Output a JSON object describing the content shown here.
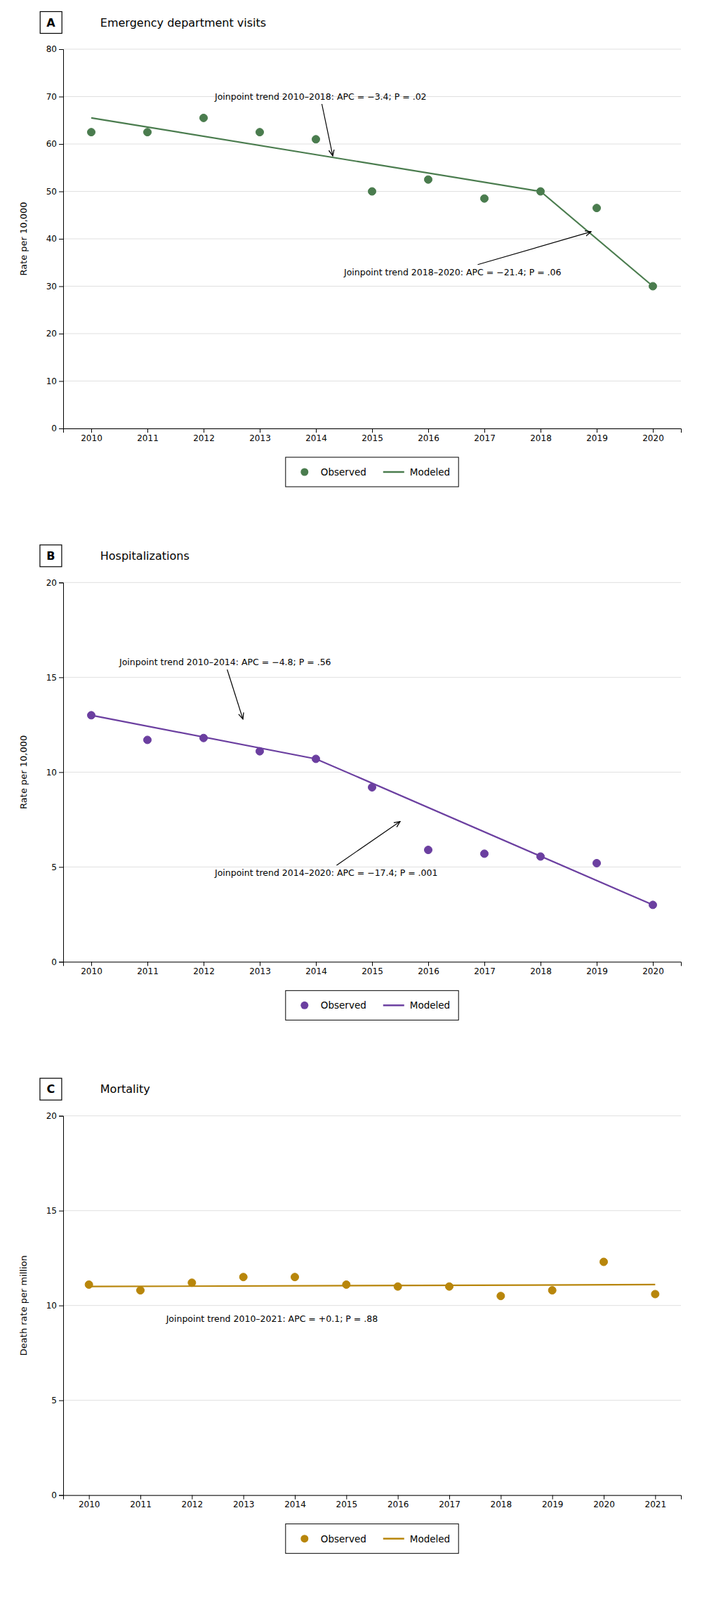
{
  "chart_data": [
    {
      "type": "line",
      "title": "Emergency department visits",
      "panel_label": "A",
      "y_label": "Rate per 10,000",
      "xlim": [
        2009.5,
        2020.5
      ],
      "xticks": [
        2010,
        2011,
        2012,
        2013,
        2014,
        2015,
        2016,
        2017,
        2018,
        2019,
        2020
      ],
      "ylim": [
        0,
        80
      ],
      "yticks": [
        0,
        10,
        20,
        30,
        40,
        50,
        60,
        70,
        80
      ],
      "grid": true,
      "legend": "bottom",
      "series": [
        {
          "name": "Observed",
          "type": "scatter",
          "color": "#4a7c4e",
          "x": [
            2010,
            2011,
            2012,
            2013,
            2014,
            2015,
            2016,
            2017,
            2018,
            2019,
            2020
          ],
          "values": [
            62.5,
            62.5,
            65.5,
            62.5,
            61.0,
            50.0,
            52.5,
            48.5,
            50.0,
            46.5,
            30.0
          ]
        },
        {
          "name": "Modeled",
          "type": "line",
          "color": "#4a7c4e",
          "x": [
            2010,
            2018,
            2018,
            2020
          ],
          "values": [
            65.5,
            50.0,
            50.0,
            30.0
          ]
        }
      ],
      "annotations": [
        {
          "text": "Joinpoint trend 2010–2018: APC = −3.4; P = .02",
          "xy": [
            2014.3,
            57.5
          ],
          "xytext": [
            2012.2,
            70.0
          ]
        },
        {
          "text": "Joinpoint trend 2018–2020: APC = −21.4; P = .06",
          "xy": [
            2018.9,
            41.5
          ],
          "xytext": [
            2014.5,
            33.0
          ]
        }
      ]
    },
    {
      "type": "line",
      "title": "Hospitalizations",
      "panel_label": "B",
      "y_label": "Rate per 10,000",
      "xlim": [
        2009.5,
        2020.5
      ],
      "xticks": [
        2010,
        2011,
        2012,
        2013,
        2014,
        2015,
        2016,
        2017,
        2018,
        2019,
        2020
      ],
      "ylim": [
        0,
        20
      ],
      "yticks": [
        0,
        5,
        10,
        15,
        20
      ],
      "grid": true,
      "legend": "bottom",
      "series": [
        {
          "name": "Observed",
          "type": "scatter",
          "color": "#6b3fa0",
          "x": [
            2010,
            2011,
            2012,
            2013,
            2014,
            2015,
            2016,
            2017,
            2018,
            2019,
            2020
          ],
          "values": [
            13.0,
            11.7,
            11.8,
            11.1,
            10.7,
            9.2,
            5.9,
            5.7,
            5.55,
            5.2,
            3.0
          ]
        },
        {
          "name": "Modeled",
          "type": "line",
          "color": "#6b3fa0",
          "x": [
            2010,
            2014,
            2014,
            2020
          ],
          "values": [
            13.0,
            10.7,
            10.7,
            3.0
          ]
        }
      ],
      "annotations": [
        {
          "text": "Joinpoint trend 2010–2014: APC = −4.8; P = .56",
          "xy": [
            2012.7,
            12.8
          ],
          "xytext": [
            2010.5,
            15.8
          ]
        },
        {
          "text": "Joinpoint trend 2014–2020: APC = −17.4; P = .001",
          "xy": [
            2015.5,
            7.4
          ],
          "xytext": [
            2012.2,
            4.7
          ]
        }
      ]
    },
    {
      "type": "line",
      "title": "Mortality",
      "panel_label": "C",
      "y_label": "Death rate per million",
      "xlim": [
        2009.5,
        2021.5
      ],
      "xticks": [
        2010,
        2011,
        2012,
        2013,
        2014,
        2015,
        2016,
        2017,
        2018,
        2019,
        2020,
        2021
      ],
      "ylim": [
        0,
        20
      ],
      "yticks": [
        0,
        5,
        10,
        15,
        20
      ],
      "grid": true,
      "legend": "bottom",
      "series": [
        {
          "name": "Observed",
          "type": "scatter",
          "color": "#b8860b",
          "x": [
            2010,
            2011,
            2012,
            2013,
            2014,
            2015,
            2016,
            2017,
            2018,
            2019,
            2020,
            2021
          ],
          "values": [
            11.1,
            10.8,
            11.2,
            11.5,
            11.5,
            11.1,
            11.0,
            11.0,
            10.5,
            10.8,
            12.3,
            10.6
          ]
        },
        {
          "name": "Modeled",
          "type": "line",
          "color": "#b8860b",
          "x": [
            2010,
            2021
          ],
          "values": [
            11.0,
            11.1
          ]
        }
      ],
      "annotations": [
        {
          "text": "Joinpoint trend 2010–2021: APC = +0.1; P = .88",
          "xytext": [
            2011.5,
            9.3
          ]
        }
      ]
    }
  ]
}
